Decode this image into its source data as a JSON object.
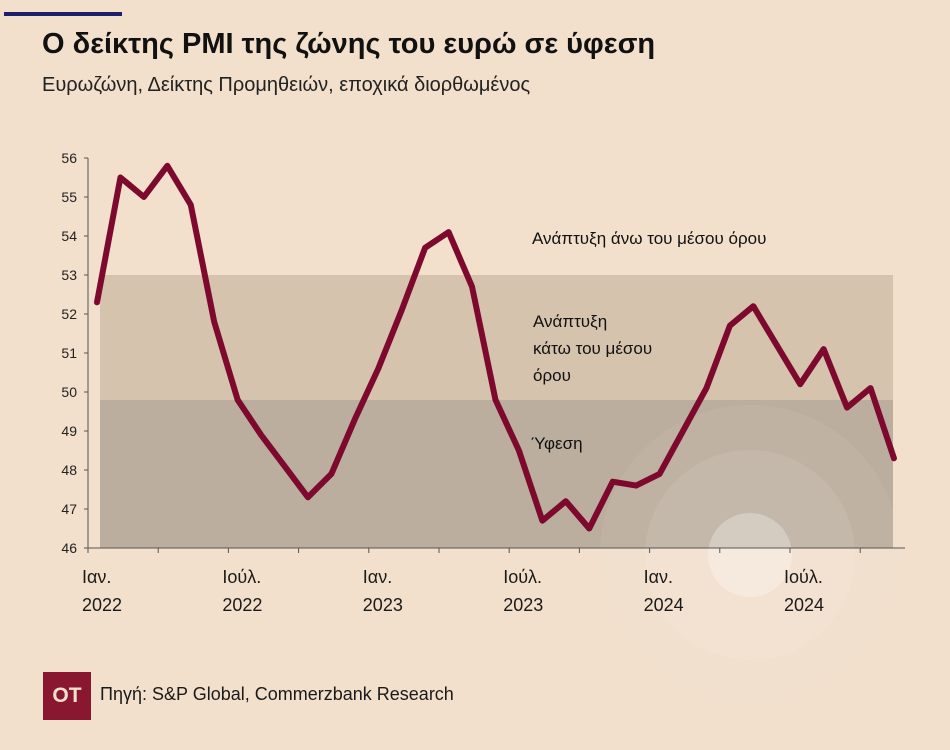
{
  "title": "Ο δείκτης PMI της ζώνης του ευρώ σε ύφεση",
  "subtitle": "Ευρωζώνη, Δείκτης Προμηθειών, εποχικά διορθωμένος",
  "logo_text": "OT",
  "source": "Πηγή: S&P Global, Commerzbank Research",
  "colors": {
    "background": "#f2dfcc",
    "line": "#7d0a2e",
    "band_mid": "#d5c3ae",
    "band_low": "#bbae9e",
    "accent_bar": "#1c1f6b",
    "logo": "#8a1730"
  },
  "chart_data": {
    "type": "line",
    "title": "Ο δείκτης PMI της ζώνης του ευρώ σε ύφεση",
    "xlabel": "",
    "ylabel": "",
    "ylim": [
      46,
      56
    ],
    "yticks": [
      "46",
      "47",
      "48",
      "49",
      "50",
      "51",
      "52",
      "53",
      "54",
      "55",
      "56"
    ],
    "xtick_labels": [
      {
        "month": "Ιαν.",
        "year": "2022"
      },
      {
        "month": "Ιούλ.",
        "year": "2022"
      },
      {
        "month": "Ιαν.",
        "year": "2023"
      },
      {
        "month": "Ιούλ.",
        "year": "2023"
      },
      {
        "month": "Ιαν.",
        "year": "2024"
      },
      {
        "month": "Ιούλ.",
        "year": "2024"
      }
    ],
    "x_start": "2022-01",
    "x_end": "2024-11",
    "frequency": "monthly",
    "series": [
      {
        "name": "PMI",
        "values": [
          52.3,
          55.5,
          55.0,
          55.8,
          54.8,
          51.8,
          49.8,
          48.9,
          48.1,
          47.3,
          47.9,
          49.3,
          50.6,
          52.1,
          53.7,
          54.1,
          52.7,
          49.8,
          48.5,
          46.7,
          47.2,
          46.5,
          47.7,
          47.6,
          47.9,
          49.0,
          50.1,
          51.7,
          52.2,
          51.2,
          50.2,
          51.1,
          49.6,
          50.1,
          48.3
        ]
      }
    ],
    "bands": [
      {
        "label": "Ανάπτυξη άνω του μέσου όρου",
        "from": 53,
        "to": 56
      },
      {
        "label": "Ανάπτυξη κάτω του μέσου όρου",
        "from": 49.8,
        "to": 53
      },
      {
        "label": "Ύφεση",
        "from": 46,
        "to": 49.8
      }
    ],
    "band_labels": {
      "above": "Ανάπτυξη άνω του μέσου όρου",
      "below_l1": "Ανάπτυξη",
      "below_l2": "κάτω του μέσου",
      "below_l3": "όρου",
      "recession": "Ύφεση"
    }
  }
}
